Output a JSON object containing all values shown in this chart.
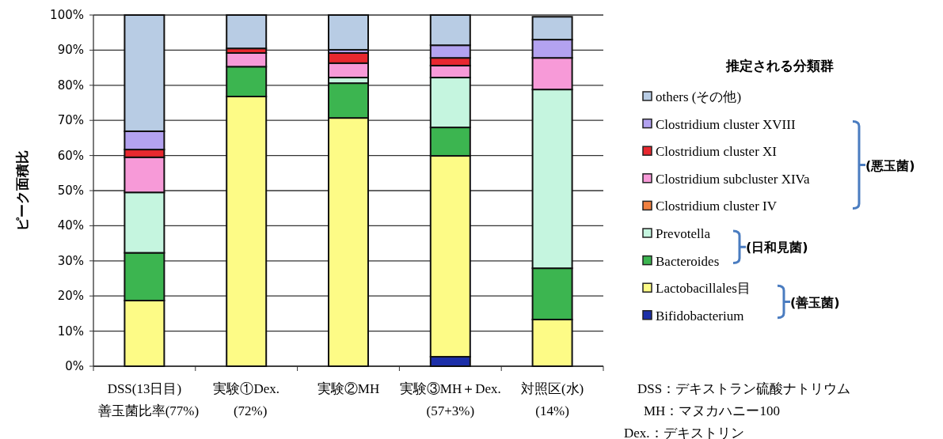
{
  "chart_data": {
    "type": "bar",
    "stacked": true,
    "ylabel": "ピーク面積比",
    "legend_title": "推定される分類群",
    "legend": "right",
    "grid": "y",
    "categories": [
      "DSS(13日目)",
      "実験①Dex.",
      "実験②MH",
      "実験③MH＋Dex.",
      "対照区(水)"
    ],
    "ylim": [
      0,
      100
    ],
    "yticks": [
      {
        "value": 0,
        "label": "0%"
      },
      {
        "value": 10,
        "label": "10%"
      },
      {
        "value": 20,
        "label": "20%"
      },
      {
        "value": 30,
        "label": "30%"
      },
      {
        "value": 40,
        "label": "40%"
      },
      {
        "value": 50,
        "label": "50%"
      },
      {
        "value": 60,
        "label": "60%"
      },
      {
        "value": 70,
        "label": "70%"
      },
      {
        "value": 80,
        "label": "80%"
      },
      {
        "value": 90,
        "label": "90%"
      },
      {
        "value": 100,
        "label": "100%"
      }
    ],
    "series": [
      {
        "name": "Bifidobacterium",
        "color": "#1c2fa8",
        "values": [
          0,
          0,
          0,
          2.7,
          0
        ]
      },
      {
        "name": "Lactobacillales目",
        "color": "#fdfb86",
        "values": [
          18.7,
          76.8,
          70.7,
          57.2,
          13.3
        ]
      },
      {
        "name": "Bacteroides",
        "color": "#3cb550",
        "values": [
          13.6,
          8.5,
          9.9,
          8.1,
          14.6
        ]
      },
      {
        "name": "Prevotella",
        "color": "#c5f5df",
        "values": [
          17.2,
          0,
          1.6,
          14.2,
          50.9
        ]
      },
      {
        "name": "Clostridium cluster IV",
        "color": "#f08040",
        "values": [
          0,
          0,
          0,
          0,
          0
        ]
      },
      {
        "name": "Clostridium subcluster XIVa",
        "color": "#f79ad8",
        "values": [
          10,
          3.9,
          4.1,
          3.4,
          9
        ]
      },
      {
        "name": "Clostridium cluster XI",
        "color": "#e8282f",
        "values": [
          2.2,
          1.3,
          2.9,
          2.2,
          null
        ]
      },
      {
        "name": "Clostridium cluster XVIII",
        "color": "#b3a2f0",
        "values": [
          5.2,
          0,
          0.9,
          3.6,
          5.2
        ]
      },
      {
        "name": "others (その他)",
        "color": "#b8cce4",
        "values": [
          33.1,
          9.5,
          9.9,
          8.6,
          6.5
        ]
      }
    ],
    "annotations": [
      "善玉菌比率(77%)",
      "(72%)",
      "(57+3%)",
      "(14%)",
      "(悪玉菌)",
      "(日和見菌)",
      "(善玉菌)",
      "DSS：デキストラン硫酸ナトリウム",
      "MH：マヌカハニー100",
      "Dex.：デキストリン"
    ]
  }
}
